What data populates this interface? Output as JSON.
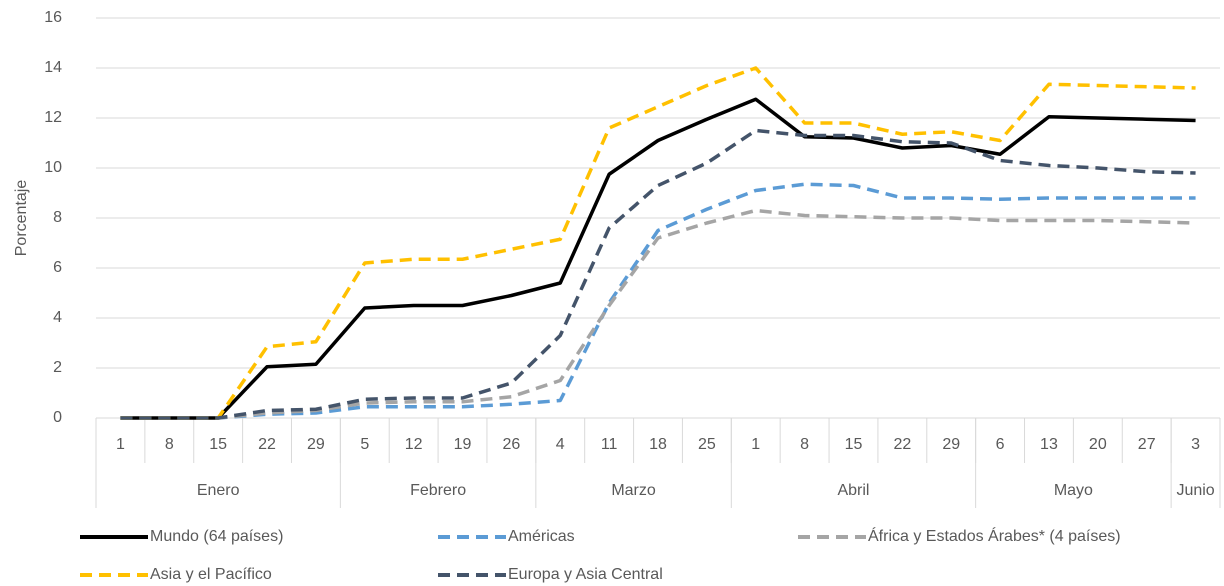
{
  "chart_data": {
    "type": "line",
    "y_label": "Porcentaje",
    "categories": [
      "1",
      "8",
      "15",
      "22",
      "29",
      "5",
      "12",
      "19",
      "26",
      "4",
      "11",
      "18",
      "25",
      "1",
      "8",
      "15",
      "22",
      "29",
      "6",
      "13",
      "20",
      "27",
      "3"
    ],
    "groups": [
      {
        "name": "Enero",
        "count": 5
      },
      {
        "name": "Febrero",
        "count": 4
      },
      {
        "name": "Marzo",
        "count": 4
      },
      {
        "name": "Abril",
        "count": 5
      },
      {
        "name": "Mayo",
        "count": 4
      },
      {
        "name": "Junio",
        "count": 1
      }
    ],
    "ylim": [
      0,
      16
    ],
    "yticks": [
      0,
      2,
      4,
      6,
      8,
      10,
      12,
      14,
      16
    ],
    "grid": true,
    "series": [
      {
        "name": "Mundo (64 países)",
        "color": "#000000",
        "dashed": false,
        "values": [
          0,
          0,
          0,
          2.05,
          2.15,
          4.4,
          4.5,
          4.5,
          4.9,
          5.4,
          9.75,
          11.1,
          11.95,
          12.75,
          11.25,
          11.2,
          10.8,
          10.9,
          10.55,
          12.05,
          12.0,
          11.95,
          11.9
        ]
      },
      {
        "name": "Américas",
        "color": "#5b9bd5",
        "dashed": true,
        "values": [
          0,
          0,
          0,
          0.15,
          0.2,
          0.45,
          0.45,
          0.45,
          0.55,
          0.7,
          4.6,
          7.5,
          8.35,
          9.1,
          9.35,
          9.3,
          8.8,
          8.8,
          8.75,
          8.8,
          8.8,
          8.8,
          8.8
        ]
      },
      {
        "name": "África y Estados Árabes* (4 países)",
        "color": "#a5a5a5",
        "dashed": true,
        "values": [
          0,
          0,
          0,
          0.2,
          0.3,
          0.6,
          0.65,
          0.65,
          0.85,
          1.5,
          4.5,
          7.2,
          7.8,
          8.3,
          8.1,
          8.05,
          8.0,
          8.0,
          7.9,
          7.9,
          7.9,
          7.85,
          7.8
        ]
      },
      {
        "name": "Asia y el Pacífico",
        "color": "#ffc000",
        "dashed": true,
        "values": [
          0,
          0,
          0,
          2.85,
          3.05,
          6.2,
          6.35,
          6.35,
          6.75,
          7.15,
          11.6,
          12.45,
          13.3,
          14.0,
          11.8,
          11.8,
          11.35,
          11.45,
          11.1,
          13.35,
          13.3,
          13.25,
          13.2
        ]
      },
      {
        "name": "Europa y Asia Central",
        "color": "#44546a",
        "dashed": true,
        "values": [
          0,
          0,
          0,
          0.3,
          0.35,
          0.75,
          0.8,
          0.8,
          1.4,
          3.3,
          7.6,
          9.3,
          10.2,
          11.5,
          11.3,
          11.3,
          11.05,
          11.0,
          10.3,
          10.1,
          10.0,
          9.85,
          9.8
        ]
      }
    ],
    "legend": "bottom"
  }
}
